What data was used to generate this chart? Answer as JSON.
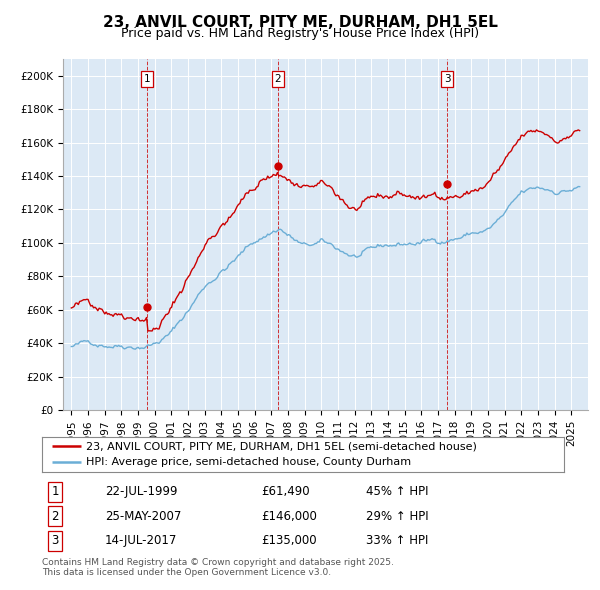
{
  "title": "23, ANVIL COURT, PITY ME, DURHAM, DH1 5EL",
  "subtitle": "Price paid vs. HM Land Registry's House Price Index (HPI)",
  "legend_entry1": "23, ANVIL COURT, PITY ME, DURHAM, DH1 5EL (semi-detached house)",
  "legend_entry2": "HPI: Average price, semi-detached house, County Durham",
  "note": "Contains HM Land Registry data © Crown copyright and database right 2025.\nThis data is licensed under the Open Government Licence v3.0.",
  "sale_labels": [
    "1",
    "2",
    "3"
  ],
  "sale_dates_str": [
    "22-JUL-1999",
    "25-MAY-2007",
    "14-JUL-2017"
  ],
  "sale_prices": [
    61490,
    146000,
    135000
  ],
  "sale_prices_str": [
    "£61,490",
    "£146,000",
    "£135,000"
  ],
  "sale_hpi_pct": [
    "45% ↑ HPI",
    "29% ↑ HPI",
    "33% ↑ HPI"
  ],
  "sale_years": [
    1999.55,
    2007.39,
    2017.54
  ],
  "ylim": [
    0,
    210000
  ],
  "xlim": [
    1994.5,
    2026.0
  ],
  "yticks": [
    0,
    20000,
    40000,
    60000,
    80000,
    100000,
    120000,
    140000,
    160000,
    180000,
    200000
  ],
  "ytick_labels": [
    "£0",
    "£20K",
    "£40K",
    "£60K",
    "£80K",
    "£100K",
    "£120K",
    "£140K",
    "£160K",
    "£180K",
    "£200K"
  ],
  "bg_color": "#dce9f5",
  "red_color": "#cc0000",
  "blue_color": "#6baed6",
  "grid_color": "#ffffff",
  "title_fontsize": 11,
  "subtitle_fontsize": 9,
  "tick_fontsize": 7.5,
  "legend_fontsize": 8,
  "table_fontsize": 8.5,
  "note_fontsize": 6.5
}
